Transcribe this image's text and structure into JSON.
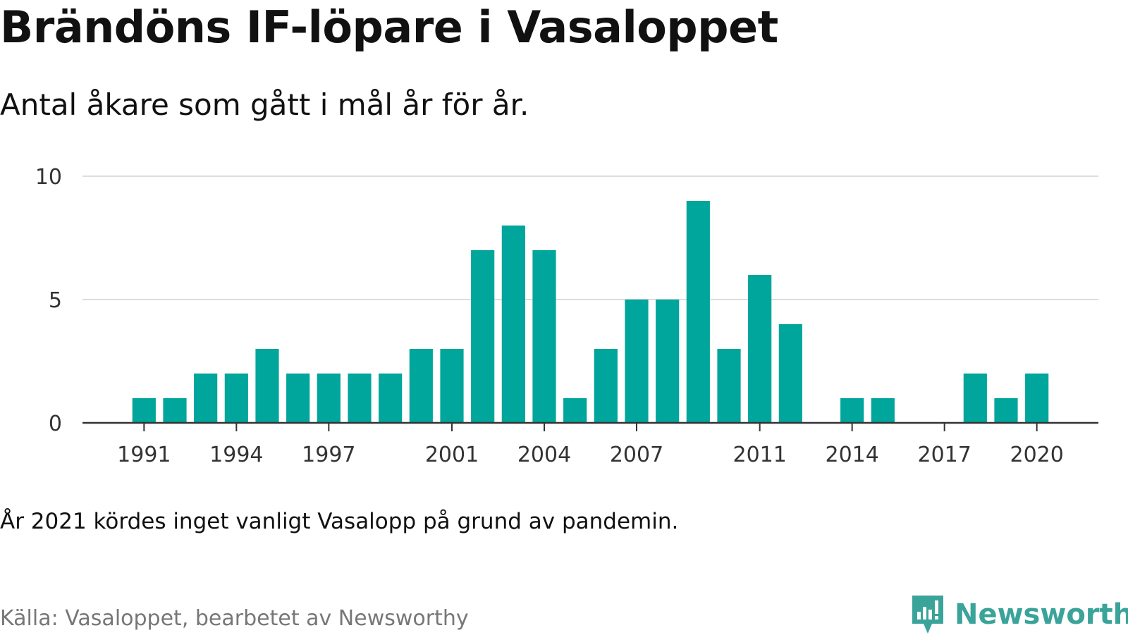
{
  "header": {
    "title": "Brändöns IF-löpare i Vasaloppet",
    "subtitle": "Antal åkare som gått i mål år för år."
  },
  "footer": {
    "note": "År 2021 kördes inget vanligt Vasalopp på grund av pandemin.",
    "source": "Källa: Vasaloppet, bearbetet av Newsworthy",
    "brand": "Newsworthy"
  },
  "colors": {
    "bar": "#00a59b",
    "grid": "#dddddd",
    "axis": "#333333",
    "brand": "#3aa39a"
  },
  "icons": {
    "logo": "newsworthy-logo-icon"
  },
  "chart_data": {
    "type": "bar",
    "x": [
      1991,
      1992,
      1993,
      1994,
      1995,
      1996,
      1997,
      1998,
      1999,
      2000,
      2001,
      2002,
      2003,
      2004,
      2005,
      2006,
      2007,
      2008,
      2009,
      2010,
      2011,
      2012,
      2013,
      2014,
      2015,
      2016,
      2017,
      2018,
      2019,
      2020
    ],
    "values": [
      1,
      1,
      2,
      2,
      3,
      2,
      2,
      2,
      2,
      3,
      3,
      7,
      8,
      7,
      1,
      3,
      5,
      5,
      9,
      3,
      6,
      4,
      0,
      1,
      1,
      0,
      0,
      2,
      1,
      2
    ],
    "xticks": [
      1991,
      1994,
      1997,
      2001,
      2004,
      2007,
      2011,
      2014,
      2017,
      2020
    ],
    "yticks": [
      0,
      5,
      10
    ],
    "ylim": [
      0,
      10
    ],
    "xlim": [
      1989,
      2022
    ],
    "grid": true,
    "legend": "none"
  }
}
